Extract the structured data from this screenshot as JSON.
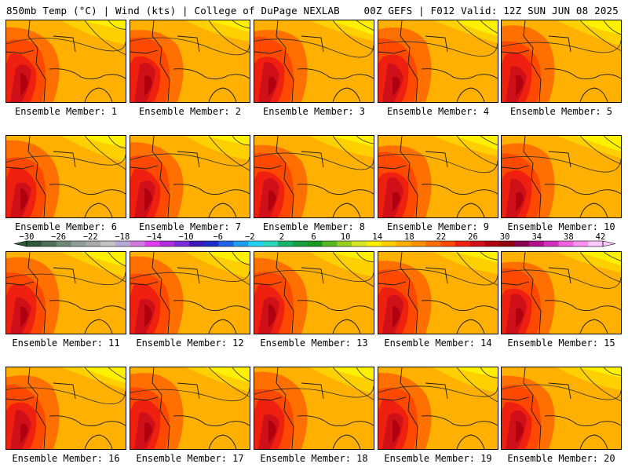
{
  "header": {
    "left": "850mb Temp (°C) | Wind (kts) | College of DuPage NEXLAB",
    "right": "00Z GEFS | F012 Valid: 12Z SUN JUN 08 2025"
  },
  "panels": [
    {
      "label": "Ensemble Member: 1"
    },
    {
      "label": "Ensemble Member: 2"
    },
    {
      "label": "Ensemble Member: 3"
    },
    {
      "label": "Ensemble Member: 4"
    },
    {
      "label": "Ensemble Member: 5"
    },
    {
      "label": "Ensemble Member: 6"
    },
    {
      "label": "Ensemble Member: 7"
    },
    {
      "label": "Ensemble Member: 8"
    },
    {
      "label": "Ensemble Member: 9"
    },
    {
      "label": "Ensemble Member: 10"
    },
    {
      "label": "Ensemble Member: 11"
    },
    {
      "label": "Ensemble Member: 12"
    },
    {
      "label": "Ensemble Member: 13"
    },
    {
      "label": "Ensemble Member: 14"
    },
    {
      "label": "Ensemble Member: 15"
    },
    {
      "label": "Ensemble Member: 16"
    },
    {
      "label": "Ensemble Member: 17"
    },
    {
      "label": "Ensemble Member: 18"
    },
    {
      "label": "Ensemble Member: 19"
    },
    {
      "label": "Ensemble Member: 20"
    }
  ],
  "colorbar": {
    "ticks": [
      "−30",
      "−26",
      "−22",
      "−18",
      "−14",
      "−10",
      "−6",
      "−2",
      "2",
      "6",
      "10",
      "14",
      "18",
      "22",
      "26",
      "30",
      "34",
      "38",
      "42"
    ],
    "colors": [
      "#2e5a3a",
      "#4e6e55",
      "#6f8a74",
      "#8f9e94",
      "#a9a9a9",
      "#c4c4c4",
      "#b9a9d8",
      "#d07ae0",
      "#e23cf0",
      "#b02ee0",
      "#7a2ad8",
      "#3c18b8",
      "#1b2ec8",
      "#1e64e6",
      "#1e9ef0",
      "#22d0f0",
      "#2ad8c0",
      "#18b46e",
      "#16a040",
      "#189a1e",
      "#58b820",
      "#98d020",
      "#d8e628",
      "#fff000",
      "#ffd000",
      "#ffb000",
      "#ff9000",
      "#ff7000",
      "#ff4800",
      "#f02010",
      "#d01018",
      "#b00010",
      "#900010",
      "#8a0050",
      "#b0108a",
      "#d030c0",
      "#f060e0",
      "#ff90f0",
      "#ffc8ff"
    ]
  }
}
